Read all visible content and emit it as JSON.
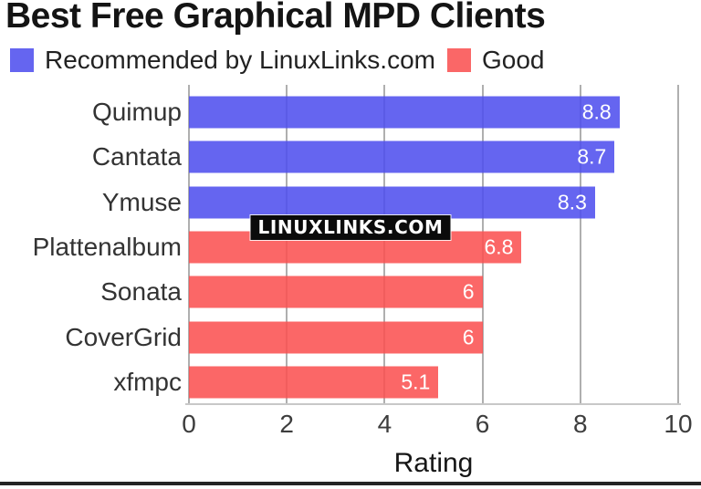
{
  "chart_data": {
    "type": "bar",
    "orientation": "horizontal",
    "title": "Best Free Graphical MPD Clients",
    "xlabel": "Rating",
    "xlim": [
      0,
      10
    ],
    "xticks": [
      "0",
      "2",
      "4",
      "6",
      "8",
      "10"
    ],
    "grid": true,
    "legend_position": "top-left",
    "categories": [
      "Quimup",
      "Cantata",
      "Ymuse",
      "Plattenalbum",
      "Sonata",
      "CoverGrid",
      "xfmpc"
    ],
    "values": [
      8.8,
      8.7,
      8.3,
      6.8,
      6,
      6,
      5.1
    ],
    "value_labels": [
      "8.8",
      "8.7",
      "8.3",
      "6.8",
      "6",
      "6",
      "5.1"
    ],
    "series_of": [
      "recommended",
      "recommended",
      "recommended",
      "good",
      "good",
      "good",
      "good"
    ],
    "series_colors": {
      "recommended": "rgba(80,80,238,0.88)",
      "good": "rgba(250,82,82,0.88)"
    },
    "legend": [
      {
        "key": "recommended",
        "label": "Recommended by LinuxLinks.com",
        "swatch_color": "#6565F0"
      },
      {
        "key": "good",
        "label": "Good",
        "swatch_color": "#FA6767"
      }
    ]
  },
  "watermark": {
    "text": "LINUXLINKS.COM",
    "bg_color": "#0b0b0b",
    "text_color": "#ffffff"
  },
  "style": {
    "gridline_color": "#AFAFAF",
    "axis_line_color": "#C8C8C8",
    "value_label_color": "#ffffff"
  }
}
